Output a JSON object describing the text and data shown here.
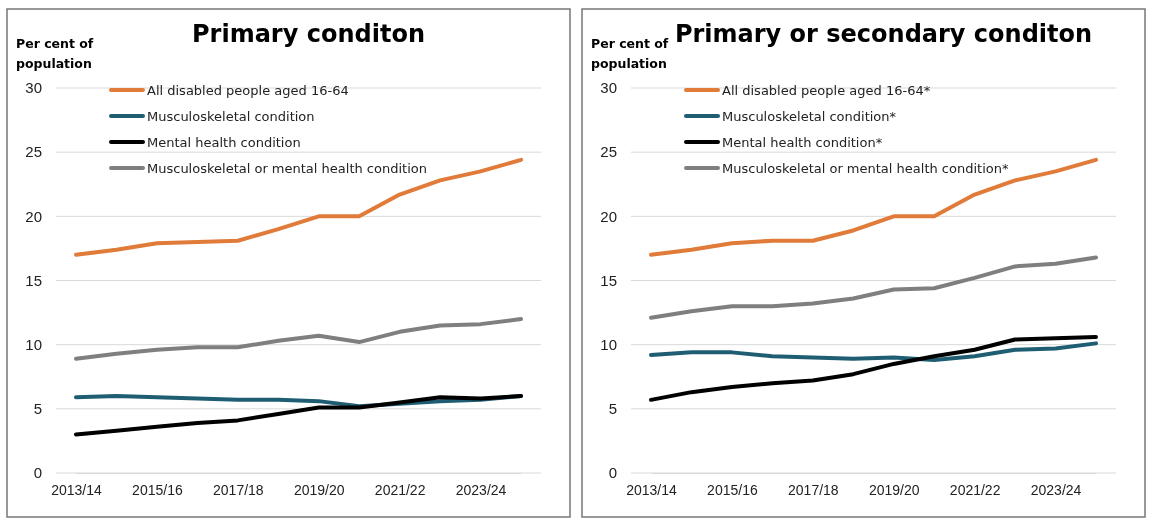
{
  "chart_data": [
    {
      "type": "line",
      "title": "Primary conditon",
      "ylabel": "Per cent of population",
      "categories": [
        "2013/14",
        null,
        "2015/16",
        null,
        "2017/18",
        null,
        "2019/20",
        null,
        "2021/22",
        null,
        "2023/24",
        null
      ],
      "ylim": [
        0,
        30
      ],
      "yticks": [
        0,
        5,
        10,
        15,
        20,
        25,
        30
      ],
      "grid": "y",
      "legend": "top left",
      "marker": "none",
      "line_style": "solid",
      "series": [
        {
          "name": "All disabled people aged 16-64",
          "color": "#e07b39",
          "values": [
            17.0,
            17.4,
            17.9,
            18.0,
            18.1,
            19.0,
            20.0,
            20.0,
            21.7,
            22.8,
            23.5,
            24.4
          ]
        },
        {
          "name": "Musculoskeletal condition",
          "color": "#1f5d73",
          "values": [
            5.9,
            6.0,
            5.9,
            5.8,
            5.7,
            5.7,
            5.6,
            5.2,
            5.4,
            5.6,
            5.7,
            6.0
          ]
        },
        {
          "name": "Mental health condition",
          "color": "#000000",
          "values": [
            3.0,
            3.3,
            3.6,
            3.9,
            4.1,
            4.6,
            5.1,
            5.1,
            5.5,
            5.9,
            5.8,
            6.0
          ]
        },
        {
          "name": "Musculoskeletal or mental health condition",
          "color": "#7f7f7f",
          "values": [
            8.9,
            9.3,
            9.6,
            9.8,
            9.8,
            10.3,
            10.7,
            10.2,
            11.0,
            11.5,
            11.6,
            12.0
          ]
        }
      ]
    },
    {
      "type": "line",
      "title": "Primary or secondary conditon",
      "ylabel": "Per cent of population",
      "categories": [
        "2013/14",
        null,
        "2015/16",
        null,
        "2017/18",
        null,
        "2019/20",
        null,
        "2021/22",
        null,
        "2023/24",
        null
      ],
      "ylim": [
        0,
        30
      ],
      "yticks": [
        0,
        5,
        10,
        15,
        20,
        25,
        30
      ],
      "grid": "y",
      "legend": "top left",
      "marker": "none",
      "line_style": "solid",
      "series": [
        {
          "name": "All disabled people aged 16-64*",
          "color": "#e07b39",
          "values": [
            17.0,
            17.4,
            17.9,
            18.1,
            18.1,
            18.9,
            20.0,
            20.0,
            21.7,
            22.8,
            23.5,
            24.4
          ]
        },
        {
          "name": "Musculoskeletal condition*",
          "color": "#1f5d73",
          "values": [
            9.2,
            9.4,
            9.4,
            9.1,
            9.0,
            8.9,
            9.0,
            8.8,
            9.1,
            9.6,
            9.7,
            10.1
          ]
        },
        {
          "name": "Mental health condition*",
          "color": "#000000",
          "values": [
            5.7,
            6.3,
            6.7,
            7.0,
            7.2,
            7.7,
            8.5,
            9.1,
            9.6,
            10.4,
            10.5,
            10.6
          ]
        },
        {
          "name": "Musculoskeletal or mental health condition*",
          "color": "#7f7f7f",
          "values": [
            12.1,
            12.6,
            13.0,
            13.0,
            13.2,
            13.6,
            14.3,
            14.4,
            15.2,
            16.1,
            16.3,
            16.8
          ]
        }
      ]
    }
  ]
}
